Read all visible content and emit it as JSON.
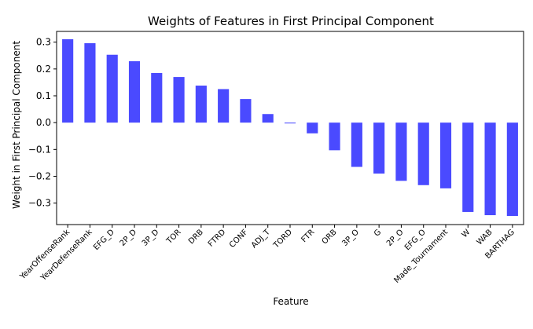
{
  "chart_data": {
    "type": "bar",
    "title": "Weights of Features in First Principal Component",
    "xlabel": "Feature",
    "ylabel": "Weight in First Principal Component",
    "categories": [
      "YearOffenseRank",
      "YearDefenseRank",
      "EFG_D",
      "2P_D",
      "3P_D",
      "TOR",
      "DRB",
      "FTRD",
      "CONF",
      "ADJ_T",
      "TORD",
      "FTR",
      "ORB",
      "3P_O",
      "G",
      "2P_O",
      "EFG_O",
      "Made_Tournament",
      "W",
      "WAB",
      "BARTHAG"
    ],
    "values": [
      0.311,
      0.296,
      0.253,
      0.229,
      0.185,
      0.17,
      0.138,
      0.125,
      0.088,
      0.032,
      -0.003,
      -0.04,
      -0.103,
      -0.165,
      -0.19,
      -0.217,
      -0.233,
      -0.245,
      -0.333,
      -0.345,
      -0.348
    ],
    "ylim": [
      -0.38,
      0.34
    ],
    "yticks": [
      -0.3,
      -0.2,
      -0.1,
      0.0,
      0.1,
      0.2,
      0.3
    ],
    "ytick_labels": [
      "−0.3",
      "−0.2",
      "−0.1",
      "0.0",
      "0.1",
      "0.2",
      "0.3"
    ],
    "bar_color": "#4a4aff",
    "grid": false,
    "legend": "none"
  }
}
